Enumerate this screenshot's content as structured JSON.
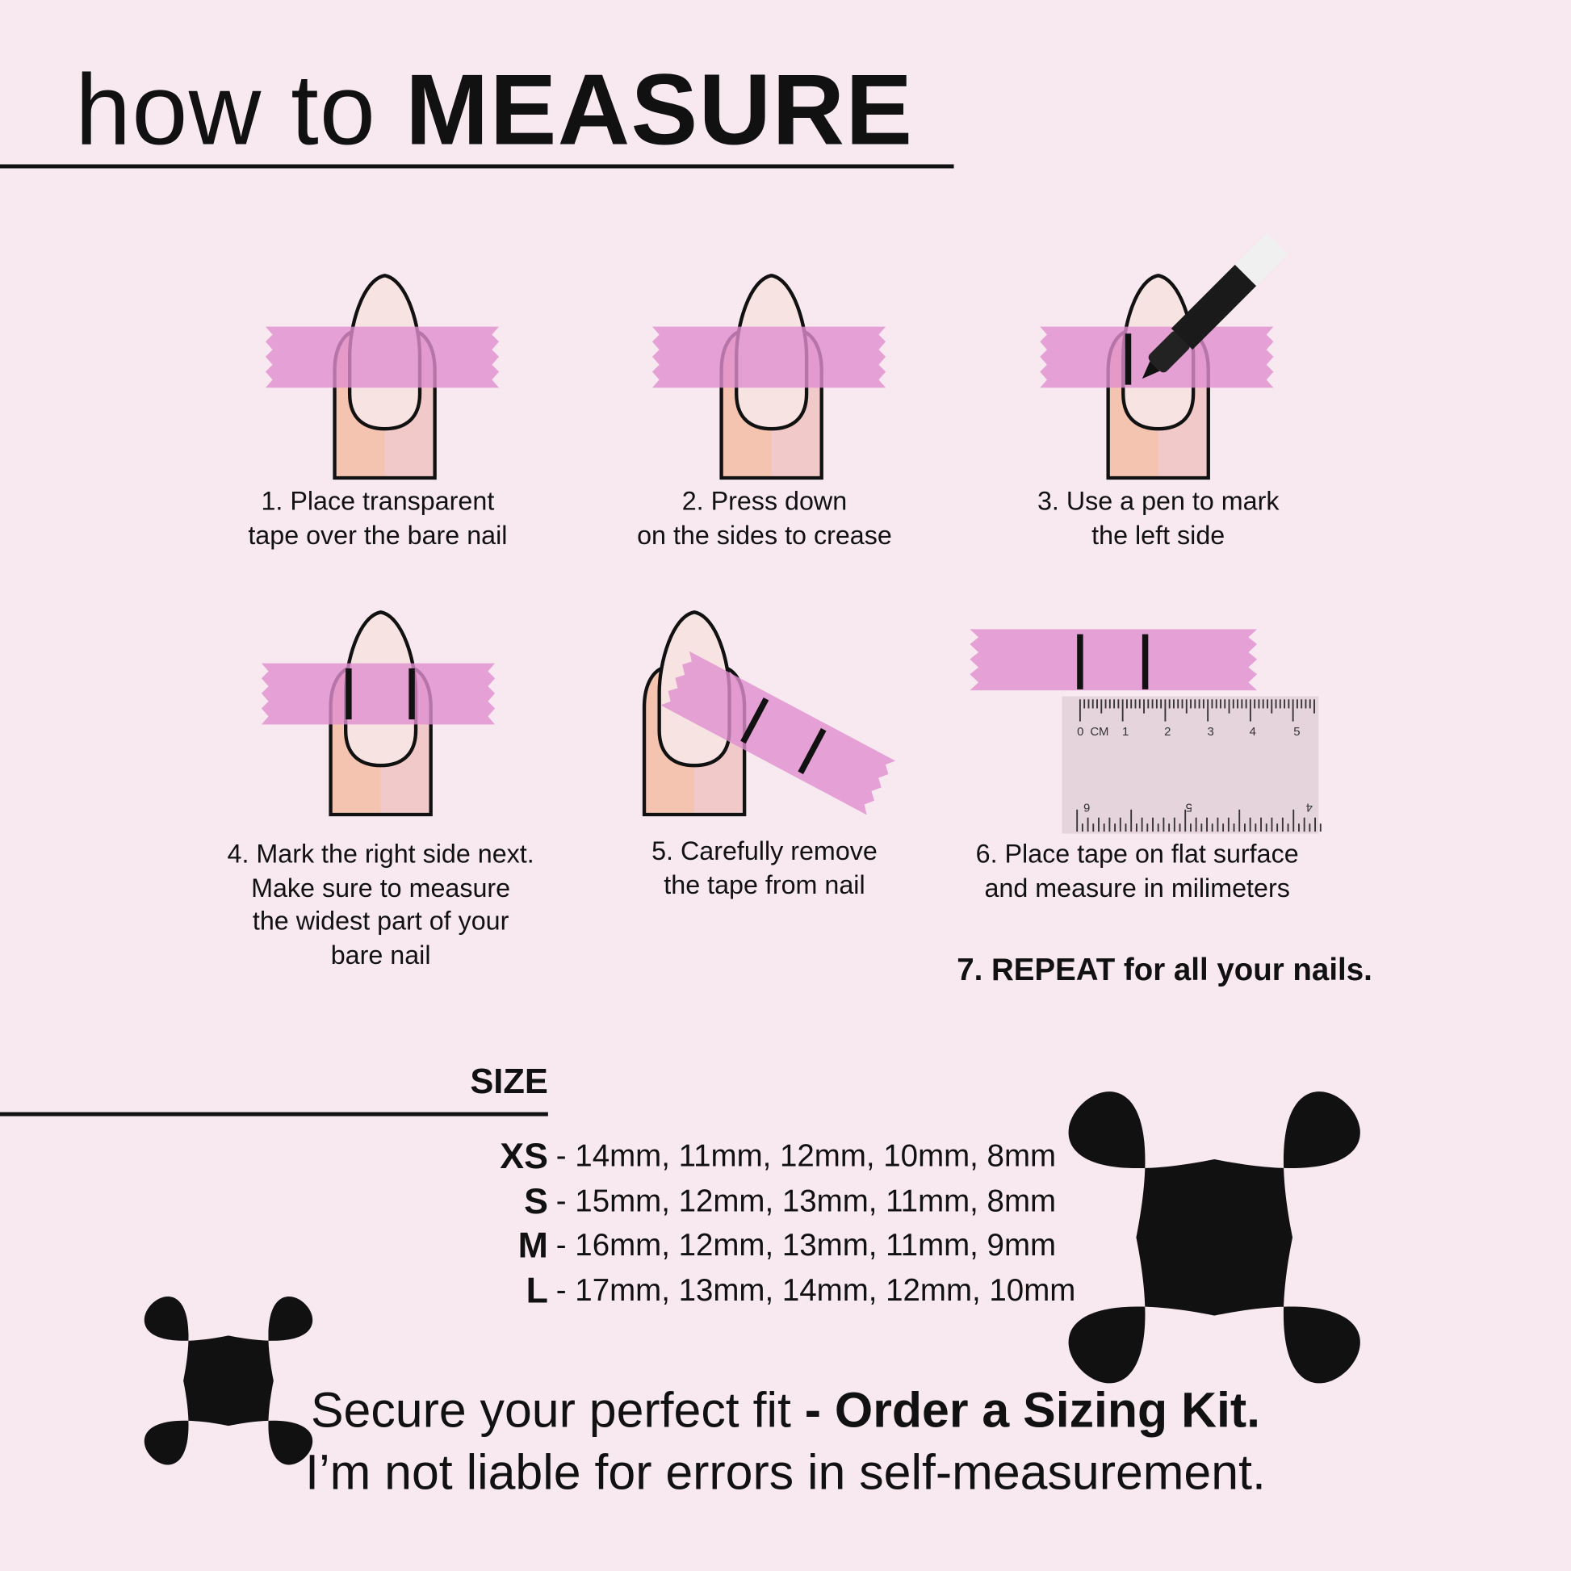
{
  "header": {
    "title_light": "how to",
    "title_bold": "MEASURE"
  },
  "steps": [
    {
      "line1": "1. Place transparent",
      "line2": "tape over the bare nail"
    },
    {
      "line1": "2. Press down",
      "line2": "on the sides to crease"
    },
    {
      "line1": "3. Use a pen to mark",
      "line2": "the left side"
    },
    {
      "line1": "4. Mark the right side next.",
      "line2": "Make sure to measure",
      "line3": "the widest part of your",
      "line4": "bare nail"
    },
    {
      "line1": "5. Carefully remove",
      "line2": "the tape from nail"
    },
    {
      "line1": "6. Place tape on flat surface",
      "line2": "and measure in milimeters"
    }
  ],
  "repeat": "7. REPEAT for all your nails.",
  "ruler": {
    "unit": "CM",
    "top_labels": [
      "0",
      "1",
      "2",
      "3",
      "4",
      "5"
    ],
    "bottom_labels": [
      "6",
      "5",
      "4"
    ]
  },
  "size": {
    "heading": "SIZE",
    "rows": [
      {
        "label": "XS",
        "values": "- 14mm, 11mm, 12mm, 10mm, 8mm"
      },
      {
        "label": "S",
        "values": "- 15mm, 12mm, 13mm, 11mm, 8mm"
      },
      {
        "label": "M",
        "values": "- 16mm, 12mm, 13mm, 11mm, 9mm"
      },
      {
        "label": "L",
        "values": "- 17mm, 13mm, 14mm, 12mm, 10mm"
      }
    ]
  },
  "footer": {
    "line1_regular": "Secure your perfect fit",
    "line1_bold": " - Order a Sizing Kit.",
    "line2": "I’m not liable for errors in self-measurement."
  },
  "colors": {
    "background": "#f7e9ef",
    "tape": "#e59fd6",
    "skin": "#f4c4b2",
    "nail": "#f7e3e1",
    "ink": "#111111"
  },
  "icons": [
    "sparkle-star-icon",
    "pen-icon",
    "ruler-icon"
  ]
}
